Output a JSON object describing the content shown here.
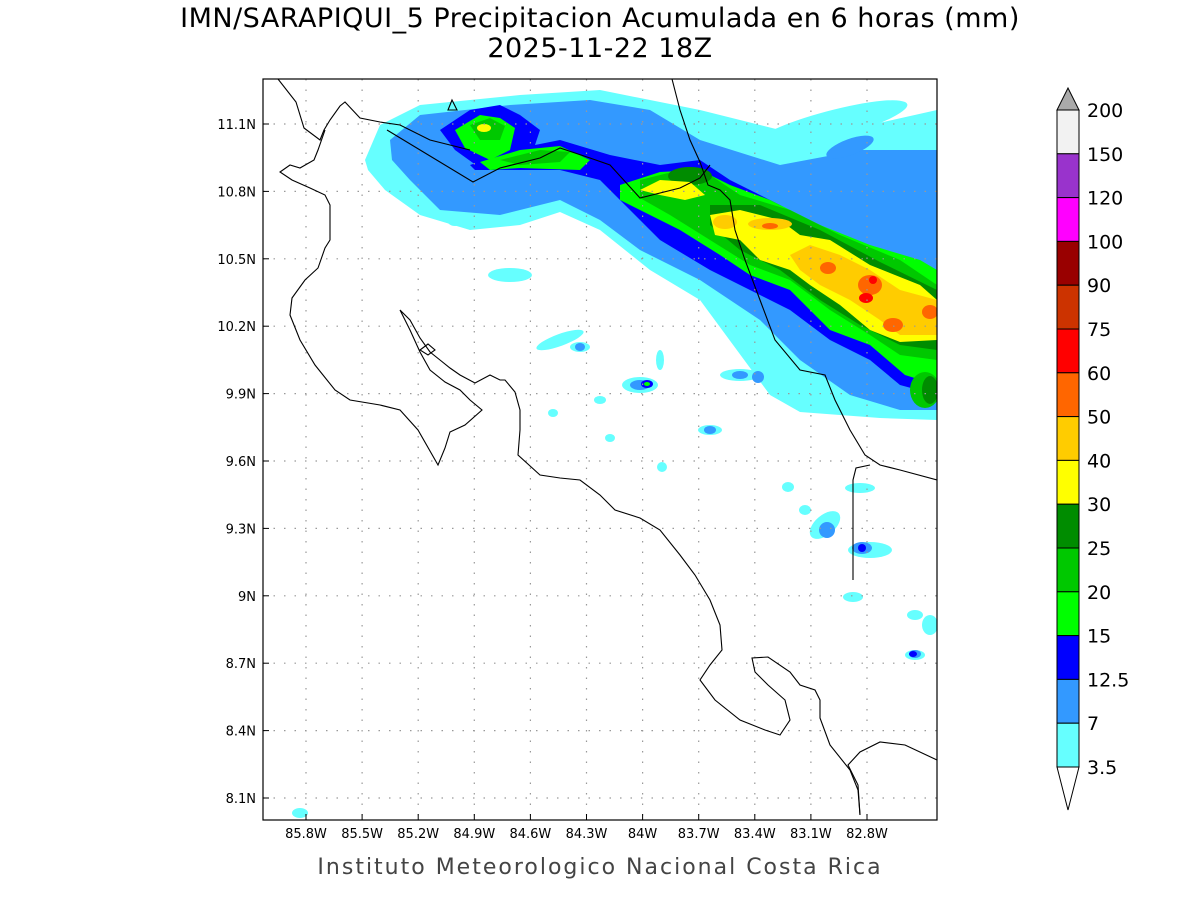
{
  "title": {
    "line1": "IMN/SARAPIQUI_5 Precipitacion Acumulada en 6 horas (mm)",
    "line2": "2025-11-22 18Z"
  },
  "map": {
    "lon_labels": [
      "85.8W",
      "85.5W",
      "85.2W",
      "84.9W",
      "84.6W",
      "84.3W",
      "84W",
      "83.7W",
      "83.4W",
      "83.1W",
      "82.8W"
    ],
    "lat_labels": [
      "11.1N",
      "10.8N",
      "10.5N",
      "10.2N",
      "9.9N",
      "9.6N",
      "9.3N",
      "9N",
      "8.7N",
      "8.4N",
      "8.1N"
    ]
  },
  "colorbar": {
    "over_color": "#aaaaaa",
    "under_color": "#ffffff",
    "levels": [
      "200",
      "150",
      "120",
      "100",
      "90",
      "75",
      "60",
      "50",
      "40",
      "30",
      "25",
      "20",
      "15",
      "12.5",
      "7",
      "3.5"
    ],
    "colors": [
      "#f2f2f2",
      "#9933cc",
      "#ff00ff",
      "#990000",
      "#cc3300",
      "#ff0000",
      "#ff6600",
      "#ffcc00",
      "#ffff00",
      "#008c00",
      "#00c800",
      "#00ff00",
      "#0000ff",
      "#3399ff",
      "#66ffff"
    ]
  },
  "footer": "Instituto Meteorologico Nacional Costa Rica"
}
